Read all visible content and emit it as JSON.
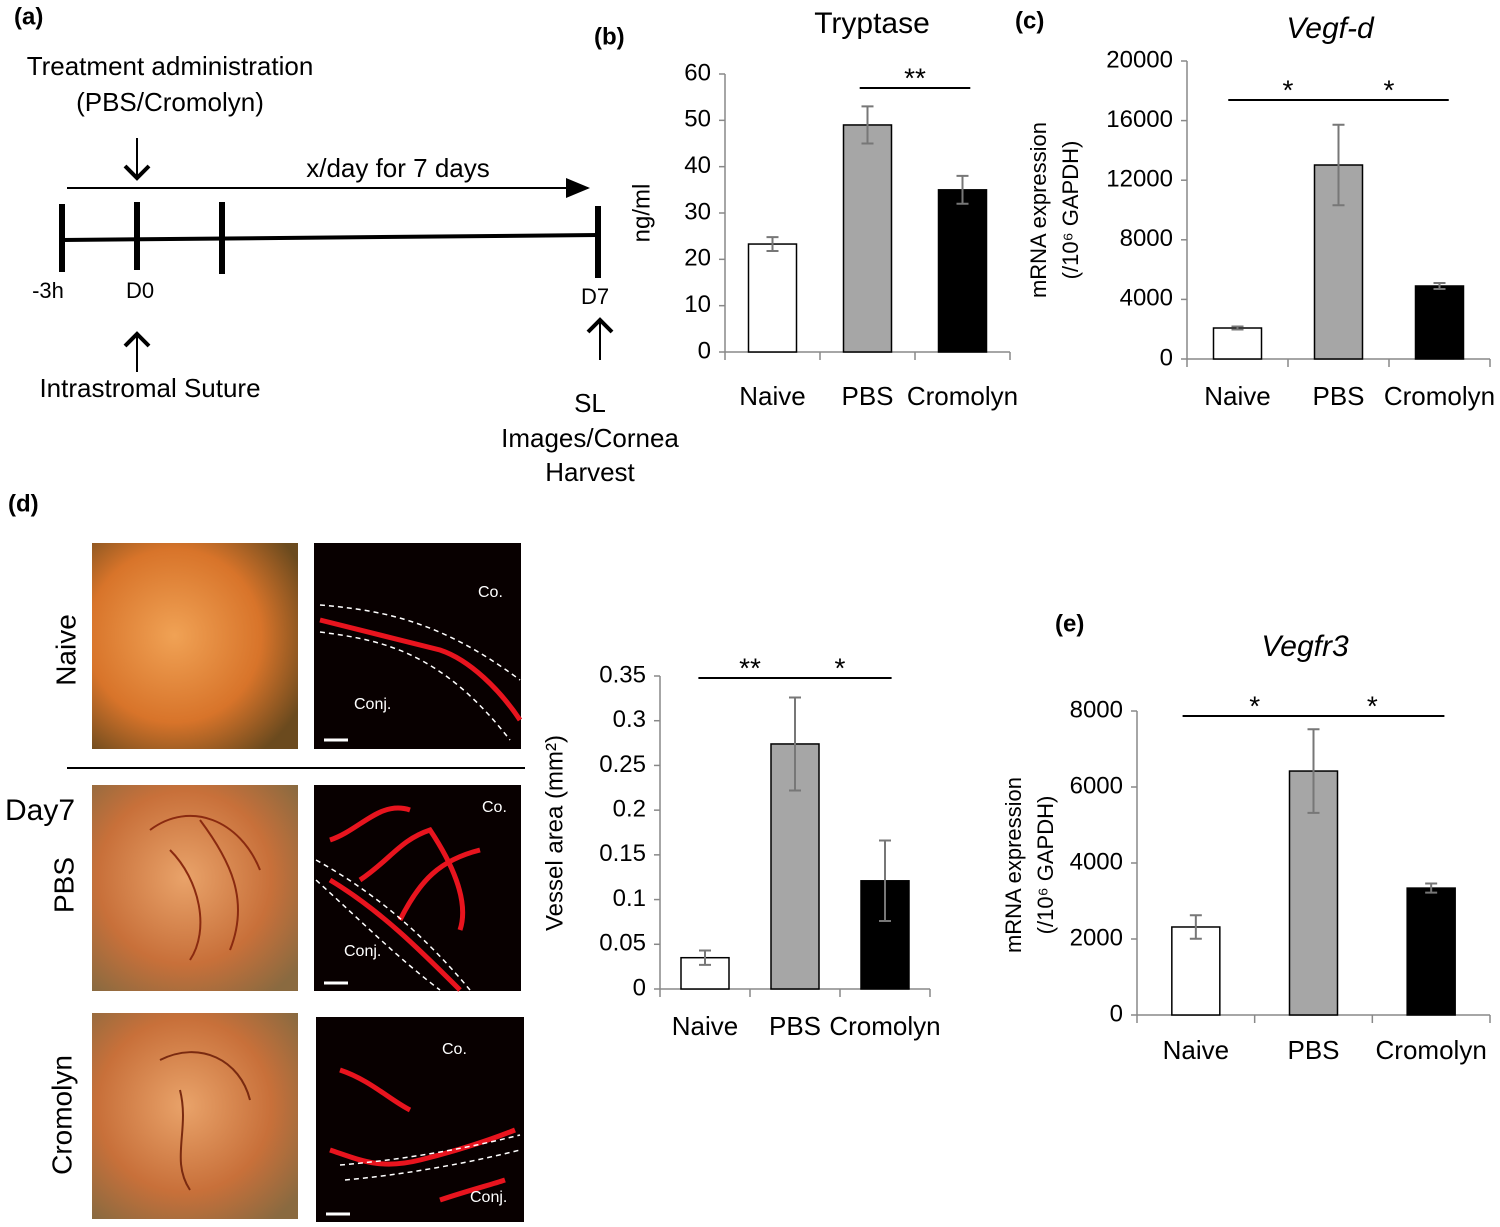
{
  "panel_labels": [
    "(a)",
    "(b)",
    "(c)",
    "(d)",
    "(e)"
  ],
  "timeline": {
    "treatment": "Treatment administration",
    "treatment_agents": "(PBS/Cromolyn)",
    "frequency": "x/day for 7 days",
    "points": [
      "-3h",
      "D0",
      "D7"
    ],
    "suture": "Intrastromal Suture",
    "harvest": [
      "SL",
      "Images/Cornea",
      "Harvest"
    ]
  },
  "images": {
    "rows": [
      "Naive",
      "PBS",
      "Cromolyn"
    ],
    "day": "Day7",
    "cornea": "Co.",
    "conjunctiva": "Conj."
  },
  "chart_data": [
    {
      "type": "bar",
      "title": "Tryptase",
      "ylabel": [
        "ng/ml"
      ],
      "categories": [
        "Naive",
        "PBS",
        "Cromolyn"
      ],
      "values": [
        23.3,
        49,
        35
      ],
      "errors": [
        1.5,
        4,
        3
      ],
      "colors": [
        "#ffffff",
        "#a6a6a6",
        "#000000"
      ],
      "ylim": [
        0,
        60
      ],
      "yticks": [
        0,
        10,
        20,
        30,
        40,
        50,
        60
      ],
      "annotations": [
        {
          "label": "**",
          "span": [
            1,
            2
          ]
        }
      ]
    },
    {
      "type": "bar",
      "title": "Vegf-d",
      "ylabel": [
        "mRNA expression",
        "(/10⁶ GAPDH)"
      ],
      "categories": [
        "Naive",
        "PBS",
        "Cromolyn"
      ],
      "values": [
        2080,
        13020,
        4900
      ],
      "errors": [
        100,
        2700,
        200
      ],
      "colors": [
        "#ffffff",
        "#a6a6a6",
        "#000000"
      ],
      "ylim": [
        0,
        20000
      ],
      "yticks": [
        0,
        4000,
        8000,
        12000,
        16000,
        20000
      ],
      "annotations": [
        {
          "label": "*",
          "span": [
            0,
            1
          ]
        },
        {
          "label": "*",
          "span": [
            1,
            2
          ]
        }
      ]
    },
    {
      "type": "bar",
      "ylabel": [
        "Vessel area (mm²)"
      ],
      "categories": [
        "Naive",
        "PBS",
        "Cromolyn"
      ],
      "values": [
        0.035,
        0.274,
        0.121
      ],
      "errors": [
        0.008,
        0.052,
        0.045
      ],
      "colors": [
        "#ffffff",
        "#a6a6a6",
        "#000000"
      ],
      "ylim": [
        0,
        0.35
      ],
      "yticks": [
        0,
        0.05,
        0.1,
        0.15,
        0.2,
        0.25,
        0.3,
        0.35
      ],
      "annotations": [
        {
          "label": "**",
          "span": [
            0,
            1
          ]
        },
        {
          "label": "*",
          "span": [
            1,
            2
          ]
        }
      ]
    },
    {
      "type": "bar",
      "title": "Vegfr3",
      "ylabel": [
        "mRNA expression",
        "(/10⁶ GAPDH)"
      ],
      "categories": [
        "Naive",
        "PBS",
        "Cromolyn"
      ],
      "values": [
        2316,
        6420,
        3340
      ],
      "errors": [
        310,
        1100,
        120
      ],
      "colors": [
        "#ffffff",
        "#a6a6a6",
        "#000000"
      ],
      "ylim": [
        0,
        8000
      ],
      "yticks": [
        0,
        2000,
        4000,
        6000,
        8000
      ],
      "annotations": [
        {
          "label": "*",
          "span": [
            0,
            1
          ]
        },
        {
          "label": "*",
          "span": [
            1,
            2
          ]
        }
      ]
    }
  ]
}
